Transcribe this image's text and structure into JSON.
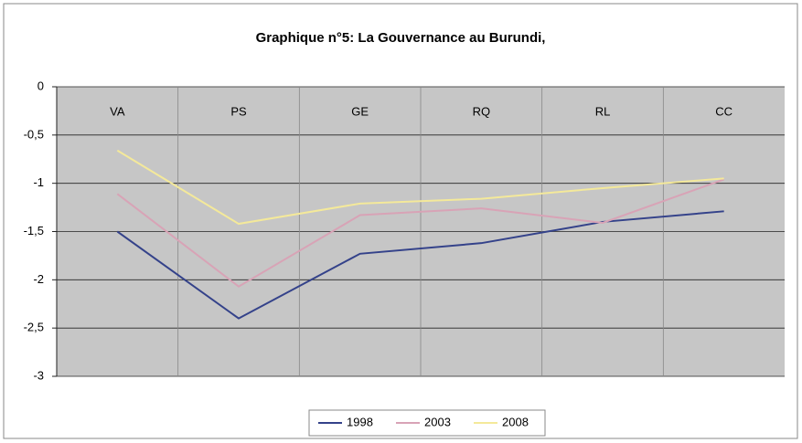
{
  "chart_data": {
    "type": "line",
    "title": "Graphique n°5: La Gouvernance au Burundi,",
    "categories": [
      "VA",
      "PS",
      "GE",
      "RQ",
      "RL",
      "CC"
    ],
    "series": [
      {
        "name": "1998",
        "color": "#34428a",
        "values": [
          -1.5,
          -2.4,
          -1.73,
          -1.62,
          -1.4,
          -1.29
        ]
      },
      {
        "name": "2003",
        "color": "#d8a3b6",
        "values": [
          -1.11,
          -2.07,
          -1.33,
          -1.26,
          -1.41,
          -0.96
        ]
      },
      {
        "name": "2008",
        "color": "#f4e99a",
        "values": [
          -0.66,
          -1.42,
          -1.21,
          -1.16,
          -1.05,
          -0.95
        ]
      }
    ],
    "ylim": [
      -3,
      0
    ],
    "yticks": [
      0,
      {
        "value": -0.5,
        "label": "-0,5"
      },
      -1,
      {
        "value": -1.5,
        "label": "-1,5"
      },
      -2,
      {
        "value": -2.5,
        "label": "-2,5"
      },
      -3
    ],
    "grid": true,
    "legend": "bottom"
  }
}
